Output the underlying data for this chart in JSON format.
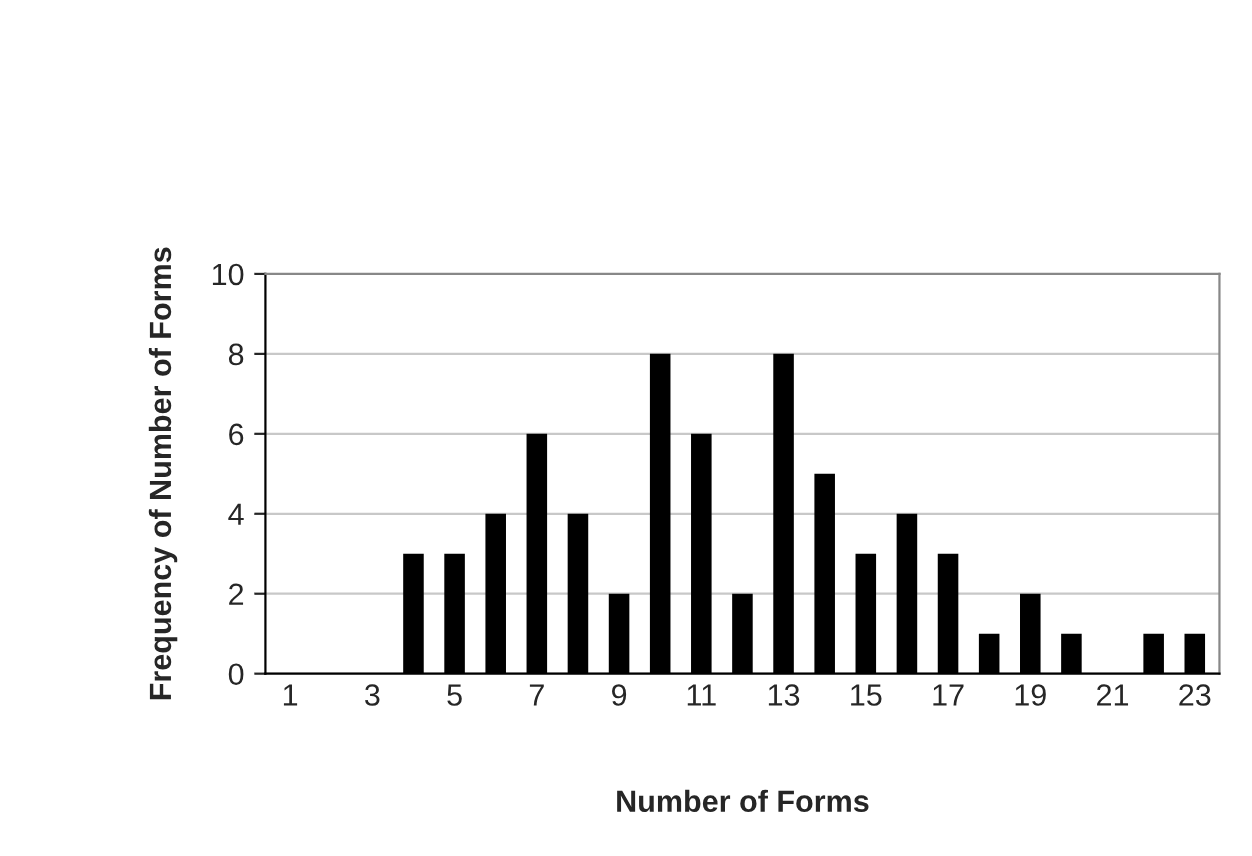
{
  "chart_data": {
    "type": "bar",
    "xlabel": "Number of Forms",
    "ylabel": "Frequency of Number of Forms",
    "categories": [
      "1",
      null,
      "3",
      null,
      "5",
      null,
      "7",
      null,
      "9",
      null,
      "11",
      null,
      "13",
      null,
      "15",
      null,
      "17",
      null,
      "19",
      null,
      "21",
      null,
      "23"
    ],
    "values": [
      0,
      0,
      0,
      3,
      3,
      4,
      6,
      4,
      2,
      8,
      6,
      2,
      8,
      5,
      3,
      4,
      3,
      1,
      2,
      1,
      0,
      1,
      1
    ],
    "color": "#000000",
    "ylim": [
      0,
      10
    ],
    "yticks": [
      0,
      2,
      4,
      6,
      8,
      10
    ],
    "grid": "y"
  }
}
